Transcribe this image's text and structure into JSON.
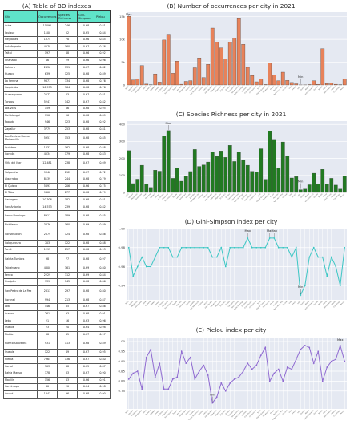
{
  "table_panel": {
    "title": "(A) Table of BD indexes",
    "headers": [
      "City",
      "Occurrences",
      "Species Richness",
      "Gini-Simpson",
      "Pielou"
    ],
    "rows": [
      [
        "Arica",
        "15091",
        "246",
        "0.98",
        "0.81"
      ],
      [
        "Iquique",
        "1100",
        "52",
        "0.95",
        "0.84"
      ],
      [
        "Mejillones",
        "1374",
        "78",
        "0.96",
        "0.85"
      ],
      [
        "Antofagasta",
        "4270",
        "160",
        "0.97",
        "0.76"
      ],
      [
        "Taltal",
        "197",
        "48",
        "0.96",
        "0.92"
      ],
      [
        "Chañaral",
        "46",
        "29",
        "0.96",
        "0.96"
      ],
      [
        "Caldera",
        "2436",
        "131",
        "0.97",
        "0.82"
      ],
      [
        "Huasco",
        "639",
        "125",
        "0.98",
        "0.89"
      ],
      [
        "La Serena",
        "9871",
        "334",
        "0.98",
        "0.76"
      ],
      [
        "Coquimbo",
        "10,973",
        "364",
        "0.98",
        "0.76"
      ],
      [
        "Guanaqueros",
        "2572",
        "83",
        "0.97",
        "0.81"
      ],
      [
        "Tongoy",
        "5247",
        "142",
        "0.97",
        "0.82"
      ],
      [
        "Los vilos",
        "159",
        "66",
        "0.98",
        "0.95"
      ],
      [
        "Pichidangui",
        "790",
        "96",
        "0.98",
        "0.89"
      ],
      [
        "Papudo",
        "946",
        "123",
        "0.98",
        "0.92"
      ],
      [
        "Zapallar",
        "3779",
        "253",
        "0.98",
        "0.81"
      ],
      [
        "Las Cenizas Horcon Maitencillo",
        "5951",
        "153",
        "0.98",
        "0.85"
      ],
      [
        "Quintero",
        "1637",
        "162",
        "0.98",
        "0.88"
      ],
      [
        "Concón",
        "4534",
        "179",
        "0.98",
        "0.83"
      ],
      [
        "Viña del Mar",
        "12,481",
        "238",
        "0.97",
        "0.69"
      ],
      [
        "Valparaíso",
        "9346",
        "212",
        "0.97",
        "0.72"
      ],
      [
        "Algarrobo",
        "8139",
        "244",
        "0.98",
        "0.79"
      ],
      [
        "El Quisco",
        "5693",
        "206",
        "0.96",
        "0.75"
      ],
      [
        "El Tabo",
        "9408",
        "277",
        "0.98",
        "0.79"
      ],
      [
        "Cartagena",
        "10,306",
        "182",
        "0.98",
        "0.81"
      ],
      [
        "San Antonio",
        "14,573",
        "239",
        "0.98",
        "0.82"
      ],
      [
        "Santo Domingo",
        "8917",
        "189",
        "0.98",
        "0.85"
      ],
      [
        "Pichilemu",
        "3876",
        "160",
        "0.99",
        "0.89"
      ],
      [
        "Constitución",
        "2079",
        "124",
        "0.98",
        "0.86"
      ],
      [
        "Cobquecura",
        "703",
        "122",
        "0.98",
        "0.88"
      ],
      [
        "Tomé",
        "1295",
        "257",
        "0.98",
        "0.93"
      ],
      [
        "Caleta Tumbes",
        "98",
        "77",
        "0.98",
        "0.97"
      ],
      [
        "Talcahuano",
        "4800",
        "361",
        "0.99",
        "0.80"
      ],
      [
        "Penco",
        "2229",
        "312",
        "0.99",
        "0.84"
      ],
      [
        "Hualpén",
        "939",
        "145",
        "0.98",
        "0.86"
      ],
      [
        "San Pedro de La Paz",
        "2813",
        "297",
        "0.98",
        "0.80"
      ],
      [
        "Coronel",
        "994",
        "213",
        "0.98",
        "0.87"
      ],
      [
        "Lota",
        "546",
        "85",
        "0.97",
        "0.86"
      ],
      [
        "Arauco",
        "261",
        "93",
        "0.98",
        "0.91"
      ],
      [
        "Lebu",
        "21",
        "16",
        "0.93",
        "0.96"
      ],
      [
        "Queule",
        "23",
        "20",
        "0.94",
        "0.98"
      ],
      [
        "Niebla",
        "88",
        "45",
        "0.97",
        "0.97"
      ],
      [
        "Puerto Saavedra",
        "931",
        "113",
        "0.98",
        "0.89"
      ],
      [
        "Queule",
        "122",
        "49",
        "0.97",
        "0.95"
      ],
      [
        "Niebla",
        "7965",
        "136",
        "0.97",
        "0.80"
      ],
      [
        "Corral",
        "303",
        "48",
        "0.95",
        "0.87"
      ],
      [
        "Bahía Mansa",
        "378",
        "83",
        "0.97",
        "0.90"
      ],
      [
        "Maullín",
        "156",
        "43",
        "0.96",
        "0.91"
      ],
      [
        "Carelmapu",
        "40",
        "20",
        "0.94",
        "0.98"
      ],
      [
        "Ancud",
        "1343",
        "96",
        "0.98",
        "0.90"
      ]
    ]
  },
  "chart_data": [
    {
      "type": "bar",
      "title": "(B) Number of occurrences per city in 2021",
      "color": "#e8825a",
      "ylim": [
        0,
        16000
      ],
      "yticks": [
        "0",
        "5k",
        "10k",
        "15k"
      ],
      "ytick_values": [
        0,
        5000,
        10000,
        15000
      ],
      "annotations": [
        {
          "index": 0,
          "text": "Max"
        },
        {
          "index": 39,
          "text": "Min"
        }
      ],
      "values": [
        15091,
        1100,
        1374,
        4270,
        197,
        46,
        2436,
        639,
        9871,
        10973,
        2572,
        5247,
        159,
        790,
        946,
        3779,
        5951,
        1637,
        4534,
        12481,
        9346,
        8139,
        5693,
        9408,
        10306,
        14573,
        8917,
        3876,
        2079,
        703,
        1295,
        98,
        4800,
        2229,
        939,
        2813,
        994,
        546,
        261,
        21,
        23,
        88,
        931,
        122,
        7965,
        303,
        378,
        156,
        40,
        1343
      ]
    },
    {
      "type": "bar",
      "title": "(C) Species Richness per city in 2021",
      "color": "#217a21",
      "ylim": [
        0,
        420
      ],
      "yticks": [
        "0",
        "100",
        "200",
        "300",
        "400"
      ],
      "ytick_values": [
        0,
        100,
        200,
        300,
        400
      ],
      "annotations": [
        {
          "index": 9,
          "text": "Max"
        },
        {
          "index": 39,
          "text": "Min"
        }
      ],
      "values": [
        246,
        52,
        78,
        160,
        48,
        29,
        131,
        125,
        334,
        364,
        83,
        142,
        66,
        96,
        123,
        253,
        153,
        162,
        179,
        238,
        212,
        244,
        206,
        277,
        182,
        239,
        189,
        160,
        124,
        122,
        257,
        77,
        361,
        312,
        145,
        297,
        213,
        85,
        93,
        16,
        20,
        45,
        113,
        49,
        136,
        48,
        83,
        43,
        20,
        96
      ]
    },
    {
      "type": "line",
      "title": "(D) Gini-Simpson index per city",
      "color": "#3cc7c4",
      "ylim": [
        0.925,
        1.0
      ],
      "yticks": [
        "0.94",
        "0.96",
        "0.98",
        "1.00"
      ],
      "ytick_values": [
        0.94,
        0.96,
        0.98,
        1.0
      ],
      "annotations": [
        {
          "index": 27,
          "text": "Max"
        },
        {
          "index": 32,
          "text": "Max"
        },
        {
          "index": 33,
          "text": "Max"
        },
        {
          "index": 39,
          "text": "Min"
        }
      ],
      "values": [
        0.98,
        0.95,
        0.96,
        0.97,
        0.96,
        0.96,
        0.97,
        0.98,
        0.98,
        0.98,
        0.97,
        0.97,
        0.98,
        0.98,
        0.98,
        0.98,
        0.98,
        0.98,
        0.98,
        0.97,
        0.97,
        0.98,
        0.96,
        0.98,
        0.98,
        0.98,
        0.98,
        0.99,
        0.98,
        0.98,
        0.98,
        0.98,
        0.99,
        0.99,
        0.98,
        0.98,
        0.98,
        0.97,
        0.98,
        0.93,
        0.94,
        0.97,
        0.98,
        0.97,
        0.97,
        0.95,
        0.97,
        0.96,
        0.94,
        0.98
      ]
    },
    {
      "type": "line",
      "title": "(E) Pielou index per city",
      "color": "#8f6ad1",
      "ylim": [
        0.66,
        1.02
      ],
      "yticks": [
        "0.75",
        "0.80",
        "0.85",
        "0.90",
        "0.95",
        "1.00"
      ],
      "ytick_values": [
        0.75,
        0.8,
        0.85,
        0.9,
        0.95,
        1.0
      ],
      "annotations": [
        {
          "index": 19,
          "text": "Min"
        },
        {
          "index": 48,
          "text": "Max"
        }
      ],
      "values": [
        0.81,
        0.84,
        0.85,
        0.76,
        0.92,
        0.96,
        0.82,
        0.89,
        0.76,
        0.76,
        0.81,
        0.82,
        0.95,
        0.89,
        0.92,
        0.81,
        0.85,
        0.88,
        0.83,
        0.69,
        0.72,
        0.79,
        0.75,
        0.79,
        0.81,
        0.82,
        0.85,
        0.89,
        0.86,
        0.88,
        0.93,
        0.97,
        0.8,
        0.84,
        0.86,
        0.8,
        0.87,
        0.86,
        0.91,
        0.96,
        0.98,
        0.97,
        0.89,
        0.95,
        0.8,
        0.87,
        0.9,
        0.91,
        0.98,
        0.9
      ]
    }
  ]
}
